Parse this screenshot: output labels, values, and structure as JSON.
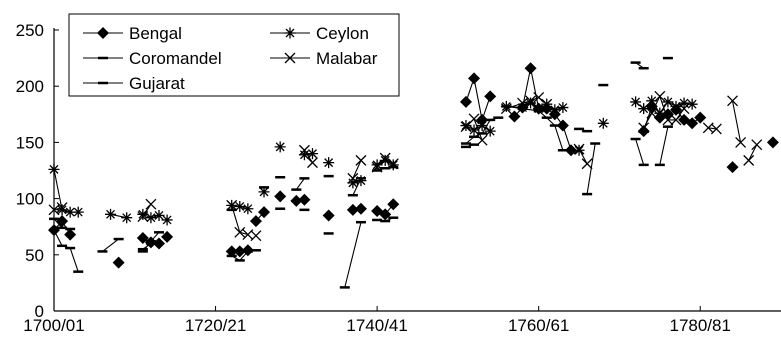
{
  "chart_data": {
    "type": "line",
    "title": "",
    "xlabel": "",
    "ylabel": "",
    "ylim": [
      0,
      250
    ],
    "yticks": [
      0,
      50,
      100,
      150,
      200,
      250
    ],
    "xlim": [
      1700,
      1790
    ],
    "xticks": [
      {
        "value": 1700,
        "label": "1700/01"
      },
      {
        "value": 1720,
        "label": "1720/21"
      },
      {
        "value": 1740,
        "label": "1740/41"
      },
      {
        "value": 1760,
        "label": "1760/61"
      },
      {
        "value": 1780,
        "label": "1780/81"
      }
    ],
    "grid": false,
    "legend_position": "top-left",
    "series": [
      {
        "name": "Bengal",
        "marker": "diamond",
        "segments": [
          [
            [
              1700,
              72
            ],
            [
              1701,
              80
            ],
            [
              1702,
              68
            ]
          ],
          [
            [
              1708,
              43
            ]
          ],
          [
            [
              1711,
              65
            ],
            [
              1712,
              61
            ],
            [
              1713,
              60
            ]
          ],
          [
            [
              1714,
              66
            ]
          ],
          [
            [
              1722,
              53
            ],
            [
              1723,
              53
            ],
            [
              1724,
              54
            ]
          ],
          [
            [
              1725,
              80
            ],
            [
              1726,
              88
            ]
          ],
          [
            [
              1728,
              102
            ]
          ],
          [
            [
              1730,
              98
            ],
            [
              1731,
              99
            ]
          ],
          [
            [
              1734,
              85
            ]
          ],
          [
            [
              1737,
              90
            ],
            [
              1738,
              91
            ]
          ],
          [
            [
              1740,
              89
            ],
            [
              1741,
              86
            ],
            [
              1742,
              95
            ]
          ],
          [
            [
              1751,
              186
            ],
            [
              1752,
              207
            ],
            [
              1753,
              170
            ],
            [
              1754,
              191
            ]
          ],
          [
            [
              1757,
              173
            ],
            [
              1758,
              181
            ],
            [
              1759,
              216
            ],
            [
              1760,
              180
            ],
            [
              1761,
              180
            ],
            [
              1762,
              175
            ],
            [
              1763,
              165
            ],
            [
              1764,
              143
            ]
          ],
          [
            [
              1773,
              160
            ],
            [
              1774,
              182
            ],
            [
              1775,
              172
            ],
            [
              1776,
              175
            ],
            [
              1777,
              179
            ],
            [
              1778,
              170
            ],
            [
              1779,
              167
            ],
            [
              1780,
              172
            ]
          ],
          [
            [
              1784,
              128
            ]
          ],
          [
            [
              1789,
              150
            ]
          ]
        ]
      },
      {
        "name": "Ceylon",
        "marker": "asterisk",
        "segments": [
          [
            [
              1700,
              126
            ],
            [
              1701,
              90
            ],
            [
              1702,
              88
            ],
            [
              1703,
              88
            ]
          ],
          [
            [
              1707,
              86
            ],
            [
              1709,
              83
            ]
          ],
          [
            [
              1711,
              86
            ],
            [
              1712,
              83
            ],
            [
              1713,
              85
            ]
          ],
          [
            [
              1714,
              81
            ]
          ],
          [
            [
              1722,
              94
            ],
            [
              1723,
              93
            ],
            [
              1724,
              91
            ]
          ],
          [
            [
              1726,
              106
            ]
          ],
          [
            [
              1728,
              146
            ]
          ],
          [
            [
              1731,
              139
            ],
            [
              1732,
              140
            ]
          ],
          [
            [
              1734,
              132
            ]
          ],
          [
            [
              1737,
              114
            ],
            [
              1738,
              116
            ]
          ],
          [
            [
              1740,
              130
            ],
            [
              1741,
              134
            ],
            [
              1742,
              130
            ]
          ],
          [
            [
              1751,
              165
            ],
            [
              1752,
              161
            ],
            [
              1753,
              165
            ],
            [
              1754,
              160
            ]
          ],
          [
            [
              1756,
              182
            ],
            [
              1758,
              181
            ],
            [
              1759,
              185
            ],
            [
              1760,
              180
            ],
            [
              1761,
              184
            ],
            [
              1762,
              179
            ],
            [
              1763,
              181
            ]
          ],
          [
            [
              1765,
              143
            ]
          ],
          [
            [
              1768,
              167
            ]
          ],
          [
            [
              1772,
              186
            ],
            [
              1773,
              180
            ],
            [
              1774,
              187
            ],
            [
              1775,
              176
            ],
            [
              1776,
              186
            ],
            [
              1777,
              182
            ],
            [
              1778,
              185
            ],
            [
              1779,
              184
            ]
          ]
        ]
      },
      {
        "name": "Coromandel",
        "marker": "dash",
        "segments": [
          [
            [
              1700,
              82
            ],
            [
              1701,
              74
            ],
            [
              1702,
              73
            ]
          ],
          [
            [
              1706,
              53
            ],
            [
              1708,
              64
            ]
          ],
          [
            [
              1711,
              53
            ],
            [
              1712,
              62
            ],
            [
              1713,
              70
            ]
          ],
          [
            [
              1722,
              90
            ]
          ],
          [
            [
              1726,
              110
            ]
          ],
          [
            [
              1728,
              119
            ]
          ],
          [
            [
              1730,
              108
            ],
            [
              1731,
              118
            ]
          ],
          [
            [
              1734,
              120
            ]
          ],
          [
            [
              1737,
              103
            ],
            [
              1738,
              118
            ]
          ],
          [
            [
              1740,
              125
            ],
            [
              1741,
              127
            ],
            [
              1742,
              128
            ]
          ],
          [
            [
              1751,
              149
            ],
            [
              1752,
              155
            ],
            [
              1753,
              158
            ],
            [
              1754,
              170
            ],
            [
              1755,
              172
            ]
          ],
          [
            [
              1756,
              182
            ],
            [
              1758,
              180
            ],
            [
              1760,
              178
            ],
            [
              1761,
              172
            ],
            [
              1762,
              165
            ],
            [
              1763,
              143
            ]
          ],
          [
            [
              1765,
              162
            ],
            [
              1766,
              160
            ]
          ],
          [
            [
              1768,
              201
            ]
          ],
          [
            [
              1772,
              221
            ],
            [
              1773,
              216
            ]
          ],
          [
            [
              1776,
              225
            ]
          ]
        ]
      },
      {
        "name": "Malabar",
        "marker": "x",
        "segments": [
          [
            [
              1700,
              90
            ],
            [
              1701,
              92
            ]
          ],
          [
            [
              1711,
              84
            ],
            [
              1712,
              95
            ]
          ],
          [
            [
              1722,
              94
            ],
            [
              1723,
              70
            ],
            [
              1724,
              68
            ]
          ],
          [
            [
              1725,
              67
            ]
          ],
          [
            [
              1731,
              143
            ],
            [
              1732,
              132
            ]
          ],
          [
            [
              1737,
              118
            ],
            [
              1738,
              134
            ]
          ],
          [
            [
              1740,
              128
            ],
            [
              1741,
              136
            ],
            [
              1742,
              131
            ]
          ],
          [
            [
              1751,
              164
            ],
            [
              1752,
              171
            ],
            [
              1753,
              152
            ]
          ],
          [
            [
              1756,
              180
            ],
            [
              1758,
              185
            ],
            [
              1759,
              187
            ],
            [
              1760,
              190
            ],
            [
              1761,
              184
            ]
          ],
          [
            [
              1765,
              144
            ],
            [
              1766,
              131
            ]
          ],
          [
            [
              1773,
              163
            ],
            [
              1774,
              176
            ],
            [
              1775,
              191
            ],
            [
              1776,
              170
            ],
            [
              1777,
              170
            ],
            [
              1778,
              180
            ]
          ],
          [
            [
              1781,
              163
            ],
            [
              1782,
              162
            ]
          ],
          [
            [
              1784,
              187
            ],
            [
              1785,
              150
            ]
          ],
          [
            [
              1786,
              134
            ],
            [
              1787,
              148
            ]
          ]
        ]
      },
      {
        "name": "Gujarat",
        "marker": "dash",
        "segments": [
          [
            [
              1700,
              72
            ],
            [
              1701,
              58
            ],
            [
              1702,
              56
            ],
            [
              1703,
              35
            ]
          ],
          [
            [
              1711,
              55
            ],
            [
              1712,
              60
            ]
          ],
          [
            [
              1722,
              49
            ],
            [
              1723,
              45
            ],
            [
              1724,
              53
            ]
          ],
          [
            [
              1725,
              54
            ]
          ],
          [
            [
              1728,
              91
            ]
          ],
          [
            [
              1731,
              90
            ]
          ],
          [
            [
              1734,
              69
            ]
          ],
          [
            [
              1736,
              21
            ],
            [
              1738,
              79
            ]
          ],
          [
            [
              1740,
              81
            ],
            [
              1741,
              80
            ],
            [
              1742,
              83
            ]
          ],
          [
            [
              1751,
              146
            ],
            [
              1752,
              148
            ]
          ],
          [
            [
              1766,
              104
            ],
            [
              1767,
              149
            ]
          ],
          [
            [
              1772,
              153
            ],
            [
              1773,
              130
            ]
          ],
          [
            [
              1775,
              130
            ],
            [
              1776,
              164
            ]
          ]
        ]
      }
    ]
  }
}
